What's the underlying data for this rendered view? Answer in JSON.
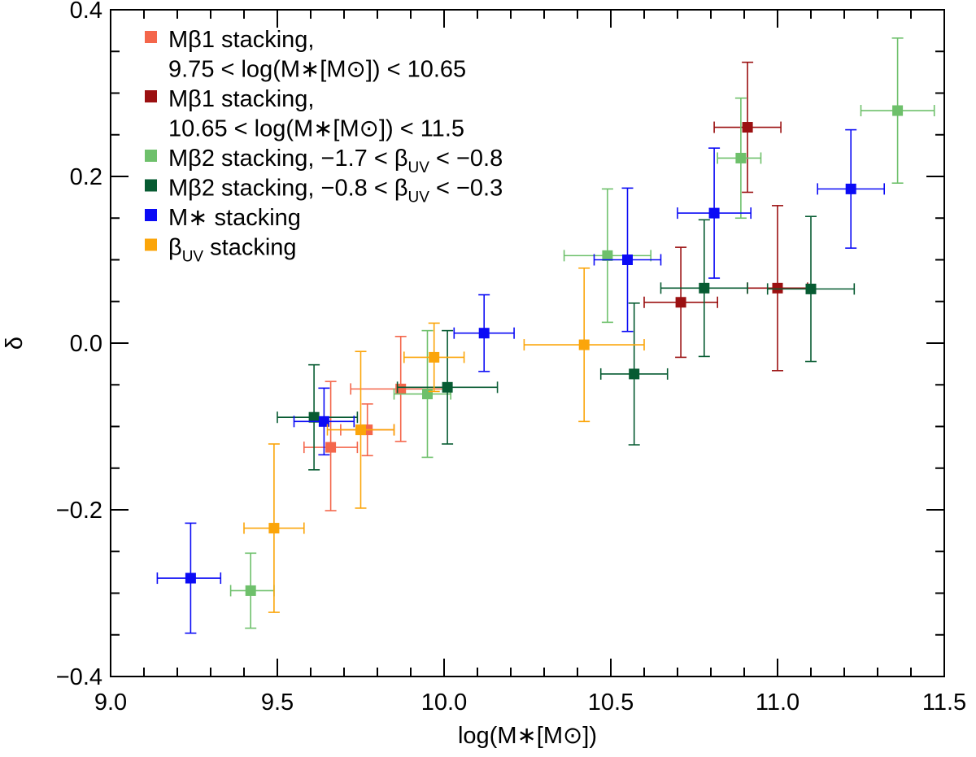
{
  "chart_data": {
    "type": "scatter",
    "title": "",
    "xlabel": "log(M∗[M⊙])",
    "ylabel": "δ",
    "xlim": [
      9.0,
      11.5
    ],
    "ylim": [
      -0.4,
      0.4
    ],
    "xticks": [
      9.0,
      9.5,
      10.0,
      10.5,
      11.0,
      11.5
    ],
    "xtick_labels": [
      "9.0",
      "9.5",
      "10.0",
      "10.5",
      "11.0",
      "11.5"
    ],
    "yticks": [
      -0.4,
      -0.2,
      0.0,
      0.2,
      0.4
    ],
    "ytick_labels": [
      "−0.4",
      "−0.2",
      "0.0",
      "0.2",
      "0.4"
    ],
    "legend_position": "top-left",
    "series": [
      {
        "name": "Mβ1 stacking, 9.75 < log(M∗[M⊙]) < 10.65",
        "legend_lines": [
          "Mβ1 stacking,",
          "9.75 < log(M∗[M⊙]) < 10.65"
        ],
        "color": "#f4664b",
        "points": [
          {
            "x": 9.66,
            "y": -0.125,
            "xerr_low": 0.08,
            "xerr_high": 0.08,
            "yerr_low": 0.076,
            "yerr_high": 0.079
          },
          {
            "x": 9.77,
            "y": -0.104,
            "xerr_low": 0.08,
            "xerr_high": 0.08,
            "yerr_low": 0.031,
            "yerr_high": 0.031
          },
          {
            "x": 9.87,
            "y": -0.055,
            "xerr_low": 0.15,
            "xerr_high": 0.15,
            "yerr_low": 0.063,
            "yerr_high": 0.063
          }
        ]
      },
      {
        "name": "Mβ1 stacking, 10.65 < log(M∗[M⊙]) < 11.5",
        "legend_lines": [
          "Mβ1 stacking,",
          "10.65 < log(M∗[M⊙]) < 11.5"
        ],
        "color": "#9b1011",
        "points": [
          {
            "x": 10.71,
            "y": 0.049,
            "xerr_low": 0.11,
            "xerr_high": 0.11,
            "yerr_low": 0.066,
            "yerr_high": 0.066
          },
          {
            "x": 10.91,
            "y": 0.259,
            "xerr_low": 0.1,
            "xerr_high": 0.1,
            "yerr_low": 0.078,
            "yerr_high": 0.078
          },
          {
            "x": 11.0,
            "y": 0.066,
            "xerr_low": 0.09,
            "xerr_high": 0.09,
            "yerr_low": 0.099,
            "yerr_high": 0.099
          }
        ]
      },
      {
        "name": "Mβ2 stacking, −1.7 < βUV < −0.8",
        "legend_parts": [
          "Mβ2 stacking, −1.7 < β",
          "UV",
          " < −0.8"
        ],
        "color": "#6ec06b",
        "points": [
          {
            "x": 9.42,
            "y": -0.297,
            "xerr_low": 0.06,
            "xerr_high": 0.07,
            "yerr_low": 0.045,
            "yerr_high": 0.045
          },
          {
            "x": 9.95,
            "y": -0.061,
            "xerr_low": 0.1,
            "xerr_high": 0.07,
            "yerr_low": 0.076,
            "yerr_high": 0.076
          },
          {
            "x": 10.49,
            "y": 0.105,
            "xerr_low": 0.13,
            "xerr_high": 0.13,
            "yerr_low": 0.08,
            "yerr_high": 0.08
          },
          {
            "x": 10.89,
            "y": 0.222,
            "xerr_low": 0.07,
            "xerr_high": 0.06,
            "yerr_low": 0.072,
            "yerr_high": 0.072
          },
          {
            "x": 11.36,
            "y": 0.279,
            "xerr_low": 0.11,
            "xerr_high": 0.11,
            "yerr_low": 0.087,
            "yerr_high": 0.087
          }
        ]
      },
      {
        "name": "Mβ2 stacking, −0.8 < βUV < −0.3",
        "legend_parts": [
          "Mβ2 stacking, −0.8 < β",
          "UV",
          " < −0.3"
        ],
        "color": "#075b32",
        "points": [
          {
            "x": 9.61,
            "y": -0.089,
            "xerr_low": 0.11,
            "xerr_high": 0.13,
            "yerr_low": 0.063,
            "yerr_high": 0.063
          },
          {
            "x": 10.01,
            "y": -0.053,
            "xerr_low": 0.15,
            "xerr_high": 0.15,
            "yerr_low": 0.068,
            "yerr_high": 0.068
          },
          {
            "x": 10.57,
            "y": -0.037,
            "xerr_low": 0.1,
            "xerr_high": 0.1,
            "yerr_low": 0.085,
            "yerr_high": 0.085
          },
          {
            "x": 10.78,
            "y": 0.066,
            "xerr_low": 0.13,
            "xerr_high": 0.13,
            "yerr_low": 0.082,
            "yerr_high": 0.082
          },
          {
            "x": 11.1,
            "y": 0.065,
            "xerr_low": 0.13,
            "xerr_high": 0.13,
            "yerr_low": 0.087,
            "yerr_high": 0.087
          }
        ]
      },
      {
        "name": "M∗ stacking",
        "legend_parts": [
          "M∗ stacking"
        ],
        "color": "#0b0bf5",
        "points": [
          {
            "x": 9.24,
            "y": -0.282,
            "xerr_low": 0.1,
            "xerr_high": 0.09,
            "yerr_low": 0.066,
            "yerr_high": 0.066
          },
          {
            "x": 9.64,
            "y": -0.094,
            "xerr_low": 0.09,
            "xerr_high": 0.09,
            "yerr_low": 0.04,
            "yerr_high": 0.04
          },
          {
            "x": 10.12,
            "y": 0.012,
            "xerr_low": 0.09,
            "xerr_high": 0.09,
            "yerr_low": 0.046,
            "yerr_high": 0.046
          },
          {
            "x": 10.55,
            "y": 0.1,
            "xerr_low": 0.1,
            "xerr_high": 0.1,
            "yerr_low": 0.086,
            "yerr_high": 0.086
          },
          {
            "x": 10.81,
            "y": 0.156,
            "xerr_low": 0.11,
            "xerr_high": 0.11,
            "yerr_low": 0.078,
            "yerr_high": 0.078
          },
          {
            "x": 11.22,
            "y": 0.185,
            "xerr_low": 0.1,
            "xerr_high": 0.1,
            "yerr_low": 0.071,
            "yerr_high": 0.071
          }
        ]
      },
      {
        "name": "βUV stacking",
        "legend_parts": [
          "β",
          "UV",
          " stacking"
        ],
        "color": "#fba50a",
        "points": [
          {
            "x": 9.49,
            "y": -0.222,
            "xerr_low": 0.09,
            "xerr_high": 0.09,
            "yerr_low": 0.101,
            "yerr_high": 0.101
          },
          {
            "x": 9.75,
            "y": -0.104,
            "xerr_low": 0.1,
            "xerr_high": 0.1,
            "yerr_low": 0.094,
            "yerr_high": 0.094
          },
          {
            "x": 9.97,
            "y": -0.017,
            "xerr_low": 0.09,
            "xerr_high": 0.09,
            "yerr_low": 0.041,
            "yerr_high": 0.041
          },
          {
            "x": 10.42,
            "y": -0.002,
            "xerr_low": 0.18,
            "xerr_high": 0.18,
            "yerr_low": 0.092,
            "yerr_high": 0.092
          }
        ]
      }
    ]
  }
}
